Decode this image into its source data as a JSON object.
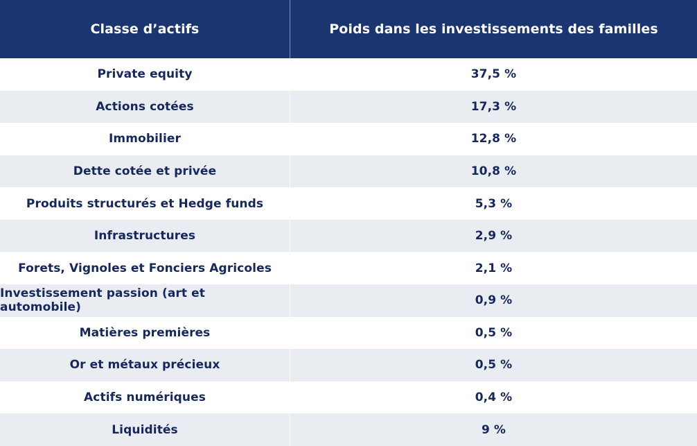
{
  "table": {
    "header": {
      "col1": "Classe d’actifs",
      "col2": "Poids dans les investissements des familles"
    },
    "rows": [
      {
        "asset": "Private equity",
        "weight": "37,5 %"
      },
      {
        "asset": "Actions cotées",
        "weight": "17,3 %"
      },
      {
        "asset": "Immobilier",
        "weight": "12,8 %"
      },
      {
        "asset": "Dette cotée et privée",
        "weight": "10,8 %"
      },
      {
        "asset": "Produits structurés et Hedge funds",
        "weight": "5,3 %"
      },
      {
        "asset": "Infrastructures",
        "weight": "2,9 %"
      },
      {
        "asset": "Forets, Vignoles et Fonciers Agricoles",
        "weight": "2,1 %"
      },
      {
        "asset": "Investissement passion (art et automobile)",
        "weight": "0,9 %"
      },
      {
        "asset": "Matières premières",
        "weight": "0,5 %"
      },
      {
        "asset": "Or et métaux précieux",
        "weight": "0,5 %"
      },
      {
        "asset": "Actifs numériques",
        "weight": "0,4 %"
      },
      {
        "asset": "Liquidités",
        "weight": "9 %"
      }
    ],
    "colors": {
      "header_background": "#1b3570",
      "header_text": "#ffffff",
      "body_text": "#15275c",
      "row_odd": "#ffffff",
      "row_even": "#e9edf1"
    }
  }
}
